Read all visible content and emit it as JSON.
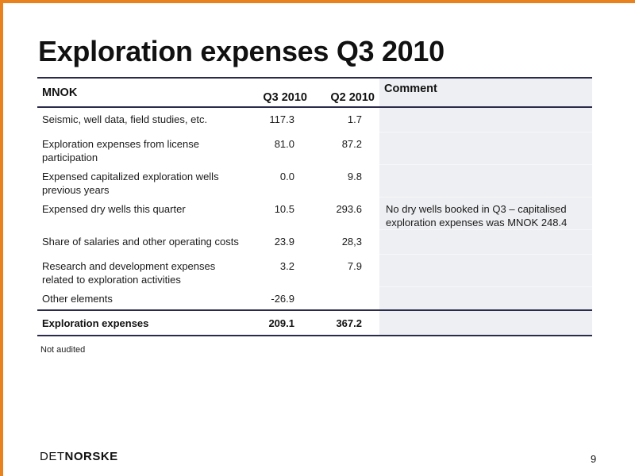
{
  "title": "Exploration expenses Q3 2010",
  "table": {
    "headers": {
      "label": "MNOK",
      "q3": "Q3 2010",
      "q2": "Q2 2010",
      "comment": "Comment"
    },
    "rows": [
      {
        "label": "Seismic, well data, field studies, etc.",
        "q3": "117.3",
        "q2": "1.7",
        "comment": ""
      },
      {
        "label": "Exploration expenses from license participation",
        "q3": "81.0",
        "q2": "87.2",
        "comment": ""
      },
      {
        "label": "Expensed capitalized exploration wells previous years",
        "q3": "0.0",
        "q2": "9.8",
        "comment": ""
      },
      {
        "label": "Expensed dry wells this quarter",
        "q3": "10.5",
        "q2": "293.6",
        "comment": "No dry wells booked in Q3 – capitalised exploration expenses was MNOK 248.4"
      },
      {
        "label": "Share of salaries and other operating costs",
        "q3": "23.9",
        "q2": "28,3",
        "comment": ""
      },
      {
        "label": "Research and development expenses related to exploration activities",
        "q3": "3.2",
        "q2": "7.9",
        "comment": ""
      },
      {
        "label": "Other elements",
        "q3": "-26.9",
        "q2": "",
        "comment": ""
      }
    ],
    "total": {
      "label": "Exploration expenses",
      "q3": "209.1",
      "q2": "367.2",
      "comment": ""
    }
  },
  "footnote": "Not audited",
  "logo": {
    "part1": "DET",
    "part2": "NORSKE"
  },
  "page_number": "9",
  "colors": {
    "accent_frame": "#e8821e",
    "rule": "#2a2a4a",
    "comment_bg": "#eeeff2"
  }
}
